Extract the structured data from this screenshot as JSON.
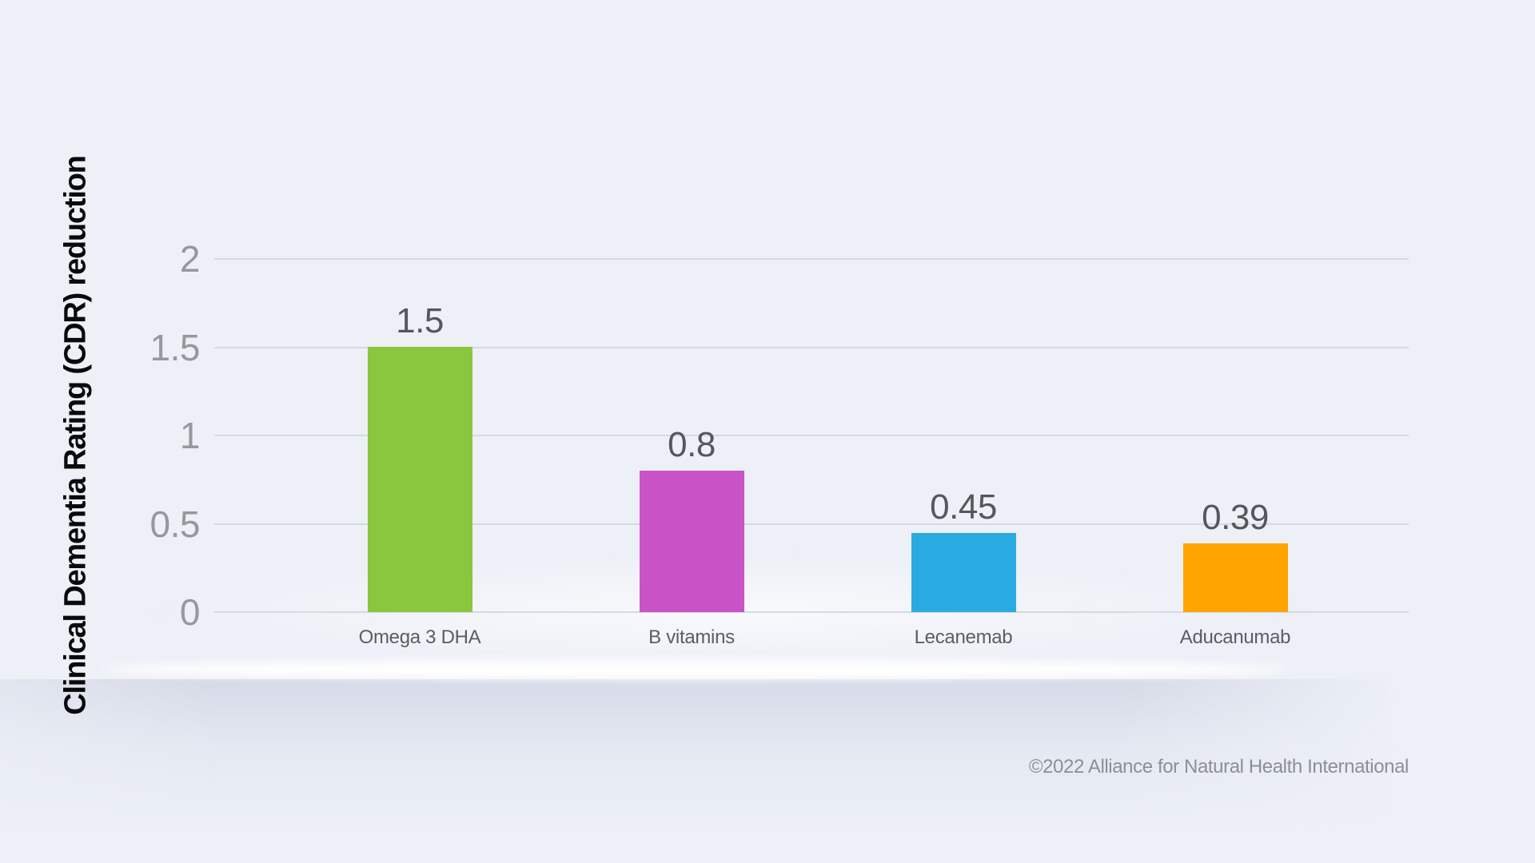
{
  "chart_data": {
    "type": "bar",
    "ylabel": "Clinical Dementia Rating (CDR) reduction",
    "categories": [
      "Omega 3 DHA",
      "B vitamins",
      "Lecanemab",
      "Aducanumab"
    ],
    "values": [
      1.5,
      0.8,
      0.45,
      0.39
    ],
    "value_labels": [
      "1.5",
      "0.8",
      "0.45",
      "0.39"
    ],
    "bar_colors": [
      "#8BC63F",
      "#C853C6",
      "#29ABE2",
      "#FFA400"
    ],
    "yticks": [
      "2",
      "1.5",
      "1",
      "0.5",
      "0"
    ],
    "ytick_values": [
      2,
      1.5,
      1,
      0.5,
      0
    ],
    "ylim": [
      0,
      2
    ],
    "grid": true,
    "legend": false,
    "footer": "©2022 Alliance for Natural Health International",
    "colors": {
      "background": "#EDF0F7",
      "gridline": "#D5D9E1",
      "tick_text": "#95989D",
      "value_text": "#54575C",
      "category_text": "#5A5D62",
      "footer_text": "#8C8F95",
      "axis_title_text": "#0A0A0C"
    }
  }
}
